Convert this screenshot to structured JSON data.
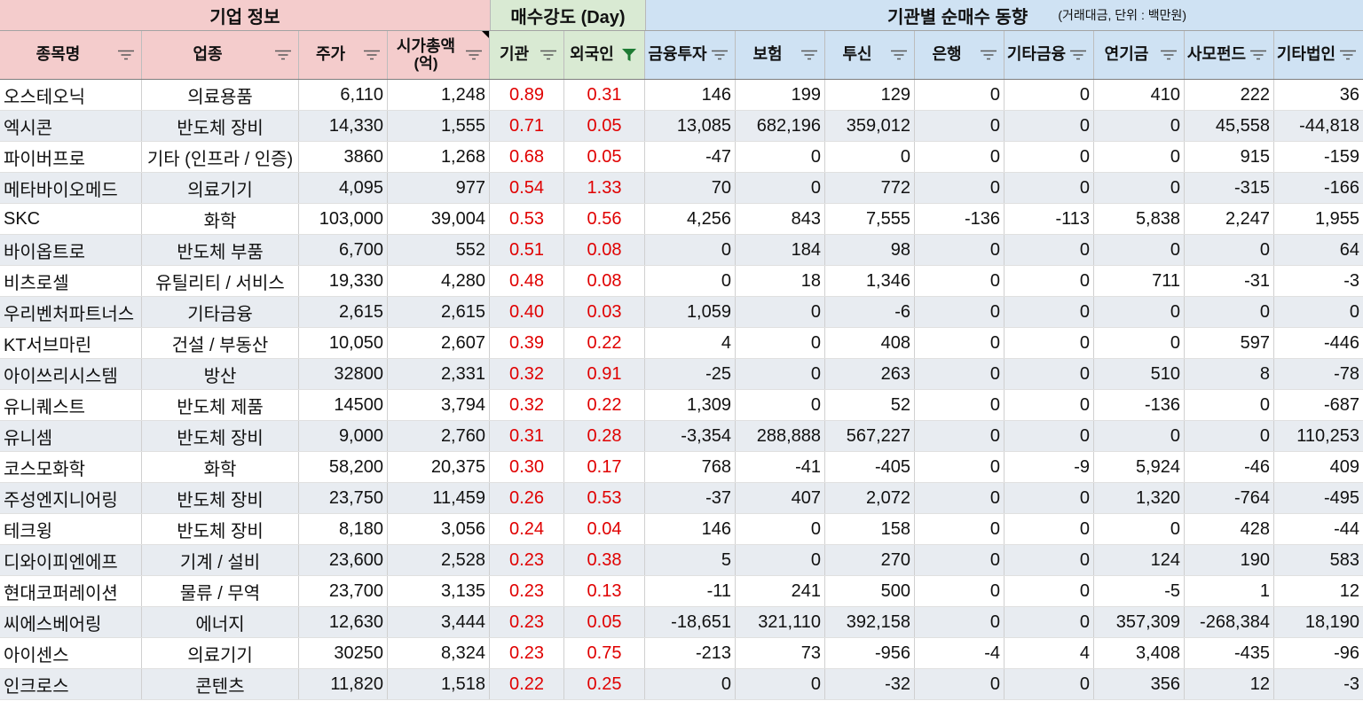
{
  "header_groups": {
    "company_info": "기업 정보",
    "buying_strength": "매수강도 (Day)",
    "institution_net_buy": "기관별 순매수 동향",
    "institution_note": "(거래대금, 단위 : 백만원)"
  },
  "columns": {
    "name": "종목명",
    "sector": "업종",
    "price": "주가",
    "market_cap": "시가총액",
    "market_cap_unit": "(억)",
    "inst": "기관",
    "foreign": "외국인",
    "fin_inv": "금융투자",
    "insurance": "보험",
    "trust": "투신",
    "bank": "은행",
    "other_fin": "기타금융",
    "pension": "연기금",
    "pef": "사모펀드",
    "other_corp": "기타법인"
  },
  "filter_icons": {
    "name": "filter-icon",
    "sector": "filter-icon",
    "price": "filter-icon",
    "market_cap": "filter-icon",
    "inst": "filter-icon",
    "foreign": "filter-active-icon",
    "fin_inv": "filter-icon",
    "insurance": "filter-icon",
    "trust": "filter-icon",
    "bank": "filter-icon",
    "other_fin": "filter-icon",
    "pension": "filter-icon",
    "pef": "filter-icon",
    "other_corp": "filter-icon"
  },
  "note_indicator_icon": "note-indicator-icon",
  "colors": {
    "company_info_bg": "#f4cccc",
    "strength_bg": "#d9ead3",
    "institution_bg": "#cfe2f3",
    "alt_row_bg": "#e8ecf1",
    "strength_text": "#e00000",
    "active_filter": "#1e7b34"
  },
  "rows": [
    {
      "name": "오스테오닉",
      "sector": "의료용품",
      "price": "6,110",
      "market_cap": "1,248",
      "inst": "0.89",
      "foreign": "0.31",
      "fin_inv": "146",
      "insurance": "199",
      "trust": "129",
      "bank": "0",
      "other_fin": "0",
      "pension": "410",
      "pef": "222",
      "other_corp": "36"
    },
    {
      "name": "엑시콘",
      "sector": "반도체 장비",
      "price": "14,330",
      "market_cap": "1,555",
      "inst": "0.71",
      "foreign": "0.05",
      "fin_inv": "13,085",
      "insurance": "682,196",
      "trust": "359,012",
      "bank": "0",
      "other_fin": "0",
      "pension": "0",
      "pef": "45,558",
      "other_corp": "-44,818"
    },
    {
      "name": "파이버프로",
      "sector": "기타 (인프라 / 인증)",
      "price": "3860",
      "market_cap": "1,268",
      "inst": "0.68",
      "foreign": "0.05",
      "fin_inv": "-47",
      "insurance": "0",
      "trust": "0",
      "bank": "0",
      "other_fin": "0",
      "pension": "0",
      "pef": "915",
      "other_corp": "-159"
    },
    {
      "name": "메타바이오메드",
      "sector": "의료기기",
      "price": "4,095",
      "market_cap": "977",
      "inst": "0.54",
      "foreign": "1.33",
      "fin_inv": "70",
      "insurance": "0",
      "trust": "772",
      "bank": "0",
      "other_fin": "0",
      "pension": "0",
      "pef": "-315",
      "other_corp": "-166"
    },
    {
      "name": "SKC",
      "sector": "화학",
      "price": "103,000",
      "market_cap": "39,004",
      "inst": "0.53",
      "foreign": "0.56",
      "fin_inv": "4,256",
      "insurance": "843",
      "trust": "7,555",
      "bank": "-136",
      "other_fin": "-113",
      "pension": "5,838",
      "pef": "2,247",
      "other_corp": "1,955"
    },
    {
      "name": "바이옵트로",
      "sector": "반도체 부품",
      "price": "6,700",
      "market_cap": "552",
      "inst": "0.51",
      "foreign": "0.08",
      "fin_inv": "0",
      "insurance": "184",
      "trust": "98",
      "bank": "0",
      "other_fin": "0",
      "pension": "0",
      "pef": "0",
      "other_corp": "64"
    },
    {
      "name": "비츠로셀",
      "sector": "유틸리티 / 서비스",
      "price": "19,330",
      "market_cap": "4,280",
      "inst": "0.48",
      "foreign": "0.08",
      "fin_inv": "0",
      "insurance": "18",
      "trust": "1,346",
      "bank": "0",
      "other_fin": "0",
      "pension": "711",
      "pef": "-31",
      "other_corp": "-3"
    },
    {
      "name": "우리벤처파트너스",
      "sector": "기타금융",
      "price": "2,615",
      "market_cap": "2,615",
      "inst": "0.40",
      "foreign": "0.03",
      "fin_inv": "1,059",
      "insurance": "0",
      "trust": "-6",
      "bank": "0",
      "other_fin": "0",
      "pension": "0",
      "pef": "0",
      "other_corp": "0"
    },
    {
      "name": "KT서브마린",
      "sector": "건설 / 부동산",
      "price": "10,050",
      "market_cap": "2,607",
      "inst": "0.39",
      "foreign": "0.22",
      "fin_inv": "4",
      "insurance": "0",
      "trust": "408",
      "bank": "0",
      "other_fin": "0",
      "pension": "0",
      "pef": "597",
      "other_corp": "-446"
    },
    {
      "name": "아이쓰리시스템",
      "sector": "방산",
      "price": "32800",
      "market_cap": "2,331",
      "inst": "0.32",
      "foreign": "0.91",
      "fin_inv": "-25",
      "insurance": "0",
      "trust": "263",
      "bank": "0",
      "other_fin": "0",
      "pension": "510",
      "pef": "8",
      "other_corp": "-78"
    },
    {
      "name": "유니퀘스트",
      "sector": "반도체 제품",
      "price": "14500",
      "market_cap": "3,794",
      "inst": "0.32",
      "foreign": "0.22",
      "fin_inv": "1,309",
      "insurance": "0",
      "trust": "52",
      "bank": "0",
      "other_fin": "0",
      "pension": "-136",
      "pef": "0",
      "other_corp": "-687"
    },
    {
      "name": "유니셈",
      "sector": "반도체 장비",
      "price": "9,000",
      "market_cap": "2,760",
      "inst": "0.31",
      "foreign": "0.28",
      "fin_inv": "-3,354",
      "insurance": "288,888",
      "trust": "567,227",
      "bank": "0",
      "other_fin": "0",
      "pension": "0",
      "pef": "0",
      "other_corp": "110,253"
    },
    {
      "name": "코스모화학",
      "sector": "화학",
      "price": "58,200",
      "market_cap": "20,375",
      "inst": "0.30",
      "foreign": "0.17",
      "fin_inv": "768",
      "insurance": "-41",
      "trust": "-405",
      "bank": "0",
      "other_fin": "-9",
      "pension": "5,924",
      "pef": "-46",
      "other_corp": "409"
    },
    {
      "name": "주성엔지니어링",
      "sector": "반도체 장비",
      "price": "23,750",
      "market_cap": "11,459",
      "inst": "0.26",
      "foreign": "0.53",
      "fin_inv": "-37",
      "insurance": "407",
      "trust": "2,072",
      "bank": "0",
      "other_fin": "0",
      "pension": "1,320",
      "pef": "-764",
      "other_corp": "-495"
    },
    {
      "name": "테크윙",
      "sector": "반도체 장비",
      "price": "8,180",
      "market_cap": "3,056",
      "inst": "0.24",
      "foreign": "0.04",
      "fin_inv": "146",
      "insurance": "0",
      "trust": "158",
      "bank": "0",
      "other_fin": "0",
      "pension": "0",
      "pef": "428",
      "other_corp": "-44"
    },
    {
      "name": "디와이피엔에프",
      "sector": "기계 / 설비",
      "price": "23,600",
      "market_cap": "2,528",
      "inst": "0.23",
      "foreign": "0.38",
      "fin_inv": "5",
      "insurance": "0",
      "trust": "270",
      "bank": "0",
      "other_fin": "0",
      "pension": "124",
      "pef": "190",
      "other_corp": "583"
    },
    {
      "name": "현대코퍼레이션",
      "sector": "물류 / 무역",
      "price": "23,700",
      "market_cap": "3,135",
      "inst": "0.23",
      "foreign": "0.13",
      "fin_inv": "-11",
      "insurance": "241",
      "trust": "500",
      "bank": "0",
      "other_fin": "0",
      "pension": "-5",
      "pef": "1",
      "other_corp": "12"
    },
    {
      "name": "씨에스베어링",
      "sector": "에너지",
      "price": "12,630",
      "market_cap": "3,444",
      "inst": "0.23",
      "foreign": "0.05",
      "fin_inv": "-18,651",
      "insurance": "321,110",
      "trust": "392,158",
      "bank": "0",
      "other_fin": "0",
      "pension": "357,309",
      "pef": "-268,384",
      "other_corp": "18,190"
    },
    {
      "name": "아이센스",
      "sector": "의료기기",
      "price": "30250",
      "market_cap": "8,324",
      "inst": "0.23",
      "foreign": "0.75",
      "fin_inv": "-213",
      "insurance": "73",
      "trust": "-956",
      "bank": "-4",
      "other_fin": "4",
      "pension": "3,408",
      "pef": "-435",
      "other_corp": "-96"
    },
    {
      "name": "인크로스",
      "sector": "콘텐츠",
      "price": "11,820",
      "market_cap": "1,518",
      "inst": "0.22",
      "foreign": "0.25",
      "fin_inv": "0",
      "insurance": "0",
      "trust": "-32",
      "bank": "0",
      "other_fin": "0",
      "pension": "356",
      "pef": "12",
      "other_corp": "-3"
    }
  ]
}
